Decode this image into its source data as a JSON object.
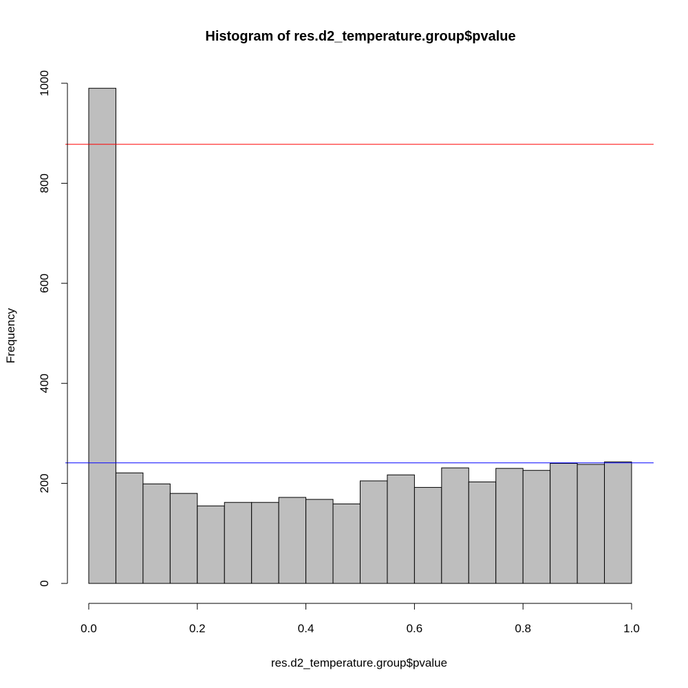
{
  "chart_data": {
    "type": "bar",
    "title": "Histogram of res.d2_temperature.group$pvalue",
    "xlabel": "res.d2_temperature.group$pvalue",
    "ylabel": "Frequency",
    "xlim": [
      0,
      1
    ],
    "ylim": [
      0,
      1000
    ],
    "bins": [
      {
        "from": 0.0,
        "to": 0.05,
        "value": 990
      },
      {
        "from": 0.05,
        "to": 0.1,
        "value": 221
      },
      {
        "from": 0.1,
        "to": 0.15,
        "value": 199
      },
      {
        "from": 0.15,
        "to": 0.2,
        "value": 180
      },
      {
        "from": 0.2,
        "to": 0.25,
        "value": 155
      },
      {
        "from": 0.25,
        "to": 0.3,
        "value": 162
      },
      {
        "from": 0.3,
        "to": 0.35,
        "value": 162
      },
      {
        "from": 0.35,
        "to": 0.4,
        "value": 172
      },
      {
        "from": 0.4,
        "to": 0.45,
        "value": 168
      },
      {
        "from": 0.45,
        "to": 0.5,
        "value": 159
      },
      {
        "from": 0.5,
        "to": 0.55,
        "value": 205
      },
      {
        "from": 0.55,
        "to": 0.6,
        "value": 217
      },
      {
        "from": 0.6,
        "to": 0.65,
        "value": 192
      },
      {
        "from": 0.65,
        "to": 0.7,
        "value": 231
      },
      {
        "from": 0.7,
        "to": 0.75,
        "value": 203
      },
      {
        "from": 0.75,
        "to": 0.8,
        "value": 230
      },
      {
        "from": 0.8,
        "to": 0.85,
        "value": 226
      },
      {
        "from": 0.85,
        "to": 0.9,
        "value": 240
      },
      {
        "from": 0.9,
        "to": 0.95,
        "value": 238
      },
      {
        "from": 0.95,
        "to": 1.0,
        "value": 243
      }
    ],
    "x_ticks": [
      {
        "value": 0.0,
        "label": "0.0"
      },
      {
        "value": 0.2,
        "label": "0.2"
      },
      {
        "value": 0.4,
        "label": "0.4"
      },
      {
        "value": 0.6,
        "label": "0.6"
      },
      {
        "value": 0.8,
        "label": "0.8"
      },
      {
        "value": 1.0,
        "label": "1.0"
      }
    ],
    "y_ticks": [
      {
        "value": 0,
        "label": "0"
      },
      {
        "value": 200,
        "label": "200"
      },
      {
        "value": 400,
        "label": "400"
      },
      {
        "value": 600,
        "label": "600"
      },
      {
        "value": 800,
        "label": "800"
      },
      {
        "value": 1000,
        "label": "1000"
      }
    ],
    "hlines": [
      {
        "value": 878,
        "color": "#ff0000"
      },
      {
        "value": 241,
        "color": "#0000ff"
      }
    ],
    "bar_fill": "#bebebe",
    "bar_stroke": "#000000",
    "grid": false,
    "legend": "none"
  }
}
